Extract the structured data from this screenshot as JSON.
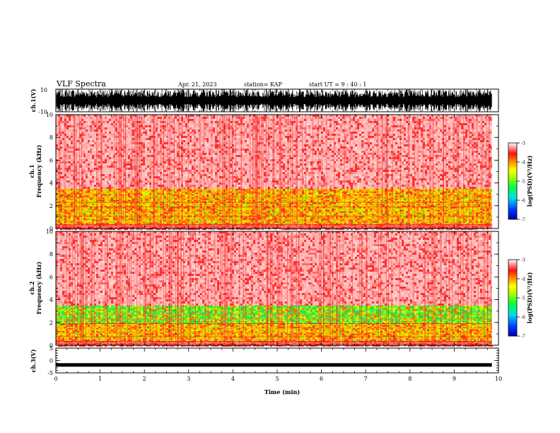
{
  "header": {
    "title": "VLF Spectra",
    "date": "Apr. 21, 2023",
    "station": "station= KAP",
    "start_ut": "start UT =  9 : 40 : 1"
  },
  "chart_data": [
    {
      "type": "line",
      "panel": "ch1-waveform",
      "ylabel": "ch.1(V)",
      "ylim": [
        -10,
        10
      ],
      "yticks": [
        -10,
        10
      ],
      "xlim": [
        0,
        10
      ],
      "description_of_signal": "dense oscillation filling most of range",
      "series": [
        {
          "values_range": [
            -10,
            10
          ]
        }
      ]
    },
    {
      "type": "heatmap",
      "panel": "ch1-spectrogram",
      "ylabel_top": "ch.1",
      "ylabel": "Frequency (kHz)",
      "ylim": [
        0,
        10
      ],
      "yticks": [
        0,
        2,
        4,
        6,
        8,
        10
      ],
      "xlim": [
        0,
        10
      ],
      "data_end_min": 9.85,
      "bands": [
        {
          "from": 0,
          "to": 0.5,
          "level": -3.6
        },
        {
          "from": 0.5,
          "to": 3.5,
          "level": -4.5
        },
        {
          "from": 3.5,
          "to": 10,
          "level": -3.2
        }
      ],
      "colorbar": {
        "label": "log(PSD)(V²/Hz)",
        "ticks": [
          -3,
          -4,
          -5,
          -6,
          -7
        ],
        "range": [
          -7,
          -3
        ]
      }
    },
    {
      "type": "heatmap",
      "panel": "ch2-spectrogram",
      "ylabel_top": "ch.2",
      "ylabel": "Frequency (kHz)",
      "ylim": [
        0,
        10
      ],
      "yticks": [
        0,
        2,
        4,
        6,
        8,
        10
      ],
      "xlim": [
        0,
        10
      ],
      "data_end_min": 9.85,
      "bands": [
        {
          "from": 0,
          "to": 0.5,
          "level": -3.6
        },
        {
          "from": 0.5,
          "to": 2,
          "level": -4.3
        },
        {
          "from": 2,
          "to": 3.5,
          "level": -5.0
        },
        {
          "from": 3.5,
          "to": 10,
          "level": -3.2
        }
      ],
      "colorbar": {
        "label": "log(PSD)(V²/Hz)",
        "ticks": [
          -3,
          -4,
          -5,
          -6,
          -7
        ],
        "range": [
          -7,
          -3
        ]
      }
    },
    {
      "type": "line",
      "panel": "ch3-waveform",
      "ylabel": "ch.3(V)",
      "ylim": [
        -5,
        5
      ],
      "yticks": [
        -5,
        0,
        5
      ],
      "xlim": [
        0,
        10
      ],
      "xlabel": "Time  (min)",
      "xticks": [
        0,
        1,
        2,
        3,
        4,
        5,
        6,
        7,
        8,
        9,
        10
      ],
      "series": [
        {
          "level": -1.8
        }
      ]
    }
  ]
}
